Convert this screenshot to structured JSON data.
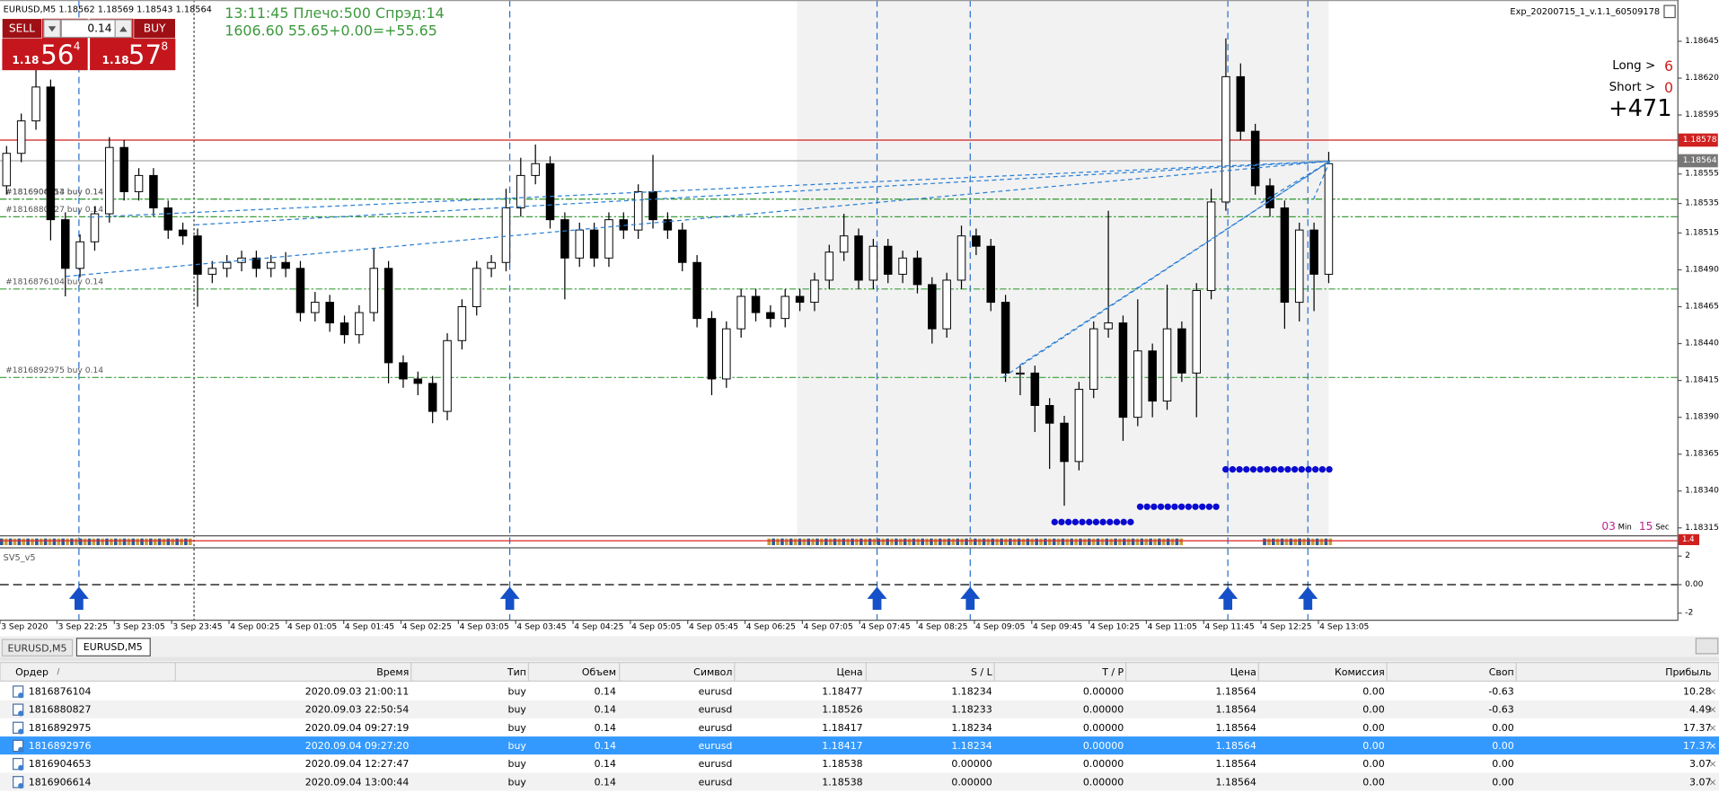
{
  "chart": {
    "symbol_info": "EURUSD,M5  1.18562 1.18569 1.18543 1.18564",
    "sell": "SELL",
    "buy": "BUY",
    "lot": "0.14",
    "bid_prefix": "1.18",
    "bid_big": "56",
    "bid_sup": "4",
    "ask_prefix": "1.18",
    "ask_big": "57",
    "ask_sup": "8",
    "info_line1": "13:11:45 Плечо:500 Спрэд:14",
    "info_line2": "1606.60   55.65+0.00=+55.65",
    "expert": "Exp_20200715_1_v.1.1_60509178",
    "long_label": "Long >",
    "long_value": "6",
    "short_label": "Short >",
    "short_value": "0",
    "profit": "+471",
    "timer_min": "03",
    "timer_min_label": "Min",
    "timer_sec": "15",
    "timer_sec_label": "Sec",
    "ylim": [
      1.1831,
      1.18673
    ],
    "yticks": [
      1.18645,
      {
        "value": 1.1862,
        "label": "1.18620"
      },
      1.18595,
      1.18555,
      1.18535,
      1.18515,
      {
        "value": 1.1849,
        "label": "1.18490"
      },
      1.18465,
      {
        "value": 1.1844,
        "label": "1.18440"
      },
      1.18415,
      {
        "value": 1.1839,
        "label": "1.18390"
      },
      1.18365,
      {
        "value": 1.1834,
        "label": "1.18340"
      },
      1.18315
    ],
    "ask_level": 1.18578,
    "bid_level": 1.18564,
    "orders": [
      {
        "label": "#1816906614 buy 0.14",
        "price": 1.18538
      },
      {
        "label": "#1816904653 buy 0.14",
        "price": 1.18538
      },
      {
        "label": "#1816880827 buy 0.14",
        "price": 1.18526
      },
      {
        "label": "#1816876104 buy 0.14",
        "price": 1.18477
      },
      {
        "label": "#1816892975 buy 0.14",
        "price": 1.18417
      }
    ],
    "time_labels": [
      "3 Sep 2020",
      "3 Sep 22:25",
      "3 Sep 23:05",
      "3 Sep 23:45",
      "4 Sep 00:25",
      "4 Sep 01:05",
      "4 Sep 01:45",
      "4 Sep 02:25",
      "4 Sep 03:05",
      "4 Sep 03:45",
      "4 Sep 04:25",
      "4 Sep 05:05",
      "4 Sep 05:45",
      "4 Sep 06:25",
      "4 Sep 07:05",
      "4 Sep 07:45",
      "4 Sep 08:25",
      "4 Sep 09:05",
      "4 Sep 09:45",
      "4 Sep 10:25",
      "4 Sep 11:05",
      "4 Sep 11:45",
      "4 Sep 12:25",
      "4 Sep 13:05"
    ],
    "candles": {
      "open": [
        1.18547,
        1.18569,
        1.18591,
        1.18614,
        1.18524,
        1.18491,
        1.18509,
        1.18528,
        1.18573,
        1.18543,
        1.18554,
        1.18532,
        1.18517,
        1.18513,
        1.18487,
        1.18491,
        1.18495,
        1.18498,
        1.18491,
        1.18495,
        1.18491,
        1.18461,
        1.18468,
        1.18454,
        1.18446,
        1.18461,
        1.18491,
        1.18427,
        1.18416,
        1.18413,
        1.18394,
        1.18442,
        1.18465,
        1.18491,
        1.18495,
        1.18532,
        1.18554,
        1.18562,
        1.18524,
        1.18498,
        1.18517,
        1.18498,
        1.18524,
        1.18517,
        1.18543,
        1.18524,
        1.18517,
        1.18495,
        1.18457,
        1.18416,
        1.1845,
        1.18472,
        1.18461,
        1.18457,
        1.18472,
        1.18468,
        1.18483,
        1.18502,
        1.18513,
        1.18483,
        1.18506,
        1.18487,
        1.18498,
        1.1848,
        1.1845,
        1.18483,
        1.18513,
        1.18506,
        1.18468,
        1.1842,
        1.1842,
        1.18398,
        1.18386,
        1.1836,
        1.18409,
        1.1845,
        1.18454,
        1.1839,
        1.18435,
        1.18401,
        1.1845,
        1.1842,
        1.18476,
        1.18536,
        1.18621,
        1.18584,
        1.18547,
        1.18532,
        1.18468,
        1.18517,
        1.18487
      ],
      "high": [
        1.18574,
        1.18596,
        1.18628,
        1.18619,
        1.18529,
        1.18514,
        1.18533,
        1.1858,
        1.18578,
        1.18559,
        1.18559,
        1.18537,
        1.18522,
        1.18518,
        1.18496,
        1.185,
        1.18503,
        1.18503,
        1.185,
        1.18502,
        1.18496,
        1.18475,
        1.18473,
        1.18459,
        1.18466,
        1.18505,
        1.18496,
        1.18432,
        1.18421,
        1.18418,
        1.18447,
        1.1847,
        1.18496,
        1.185,
        1.18545,
        1.18566,
        1.18575,
        1.18567,
        1.18529,
        1.18522,
        1.18522,
        1.18529,
        1.18529,
        1.18548,
        1.18568,
        1.18529,
        1.18522,
        1.185,
        1.18462,
        1.18455,
        1.18477,
        1.18477,
        1.18466,
        1.18477,
        1.18477,
        1.18488,
        1.18507,
        1.18528,
        1.18518,
        1.18511,
        1.18511,
        1.18503,
        1.18503,
        1.18485,
        1.18488,
        1.1852,
        1.18518,
        1.18511,
        1.18473,
        1.18425,
        1.18425,
        1.18403,
        1.18391,
        1.18414,
        1.18455,
        1.1853,
        1.18459,
        1.1847,
        1.1844,
        1.1848,
        1.18455,
        1.18481,
        1.18545,
        1.18647,
        1.1863,
        1.18589,
        1.18552,
        1.18537,
        1.18522,
        1.18522,
        1.1857
      ],
      "low": [
        1.18541,
        1.18563,
        1.18585,
        1.1851,
        1.18472,
        1.18485,
        1.18503,
        1.18522,
        1.18537,
        1.18537,
        1.18526,
        1.18511,
        1.18507,
        1.18465,
        1.18481,
        1.18485,
        1.18489,
        1.18485,
        1.18485,
        1.18485,
        1.18455,
        1.18455,
        1.18448,
        1.1844,
        1.1844,
        1.18455,
        1.18413,
        1.1841,
        1.18405,
        1.18386,
        1.18388,
        1.18436,
        1.18459,
        1.18485,
        1.18489,
        1.18526,
        1.18548,
        1.18518,
        1.1847,
        1.18492,
        1.18492,
        1.18492,
        1.18511,
        1.18511,
        1.18518,
        1.18511,
        1.18489,
        1.18451,
        1.18405,
        1.1841,
        1.18444,
        1.18455,
        1.18451,
        1.18451,
        1.18462,
        1.18462,
        1.18477,
        1.18496,
        1.18477,
        1.18477,
        1.18481,
        1.18481,
        1.18474,
        1.1844,
        1.18444,
        1.18477,
        1.185,
        1.18462,
        1.18414,
        1.18405,
        1.1838,
        1.18355,
        1.1833,
        1.18354,
        1.18403,
        1.18444,
        1.18374,
        1.18384,
        1.1839,
        1.18395,
        1.18414,
        1.1839,
        1.1847,
        1.1853,
        1.18578,
        1.18541,
        1.18526,
        1.1845,
        1.18455,
        1.18462,
        1.18481
      ],
      "close": [
        1.18569,
        1.18591,
        1.18614,
        1.18524,
        1.18491,
        1.18509,
        1.18528,
        1.18573,
        1.18543,
        1.18554,
        1.18532,
        1.18517,
        1.18513,
        1.18487,
        1.18491,
        1.18495,
        1.18498,
        1.18491,
        1.18495,
        1.18491,
        1.18461,
        1.18468,
        1.18454,
        1.18446,
        1.18461,
        1.18491,
        1.18427,
        1.18416,
        1.18413,
        1.18394,
        1.18442,
        1.18465,
        1.18491,
        1.18495,
        1.18532,
        1.18554,
        1.18562,
        1.18524,
        1.18498,
        1.18517,
        1.18498,
        1.18524,
        1.18517,
        1.18543,
        1.18524,
        1.18517,
        1.18495,
        1.18457,
        1.18416,
        1.1845,
        1.18472,
        1.18461,
        1.18457,
        1.18472,
        1.18468,
        1.18483,
        1.18502,
        1.18513,
        1.18483,
        1.18506,
        1.18487,
        1.18498,
        1.1848,
        1.1845,
        1.18483,
        1.18513,
        1.18506,
        1.18468,
        1.1842,
        1.1842,
        1.18398,
        1.18386,
        1.1836,
        1.18409,
        1.1845,
        1.18454,
        1.1839,
        1.18435,
        1.18401,
        1.1845,
        1.1842,
        1.18476,
        1.18536,
        1.18621,
        1.18584,
        1.18547,
        1.18532,
        1.18468,
        1.18517,
        1.18487,
        1.18562
      ]
    },
    "indicator": {
      "name": "SV5_v5",
      "badge": "1.4",
      "ylim": [
        -2.46,
        2.54
      ],
      "yticks": [
        2,
        {
          "value": 0,
          "label": "0.00"
        },
        -2
      ]
    }
  },
  "tabs": [
    "EURUSD,M5",
    "EURUSD,M5"
  ],
  "table": {
    "sort_mark": "/",
    "headers": [
      "Ордер",
      "Время",
      "Тип",
      "Объем",
      "Символ",
      "Цена",
      "S / L",
      "T / P",
      "Цена",
      "Комиссия",
      "Своп",
      "Прибыль"
    ],
    "selected_row": 3,
    "rows": [
      [
        "1816876104",
        "2020.09.03 21:00:11",
        "buy",
        "0.14",
        "eurusd",
        "1.18477",
        "1.18234",
        "0.00000",
        "1.18564",
        "0.00",
        "-0.63",
        "10.28"
      ],
      [
        "1816880827",
        "2020.09.03 22:50:54",
        "buy",
        "0.14",
        "eurusd",
        "1.18526",
        "1.18233",
        "0.00000",
        "1.18564",
        "0.00",
        "-0.63",
        "4.49"
      ],
      [
        "1816892975",
        "2020.09.04 09:27:19",
        "buy",
        "0.14",
        "eurusd",
        "1.18417",
        "1.18234",
        "0.00000",
        "1.18564",
        "0.00",
        "0.00",
        "17.37"
      ],
      [
        "1816892976",
        "2020.09.04 09:27:20",
        "buy",
        "0.14",
        "eurusd",
        "1.18417",
        "1.18234",
        "0.00000",
        "1.18564",
        "0.00",
        "0.00",
        "17.37"
      ],
      [
        "1816904653",
        "2020.09.04 12:27:47",
        "buy",
        "0.14",
        "eurusd",
        "1.18538",
        "0.00000",
        "0.00000",
        "1.18564",
        "0.00",
        "0.00",
        "3.07"
      ],
      [
        "1816906614",
        "2020.09.04 13:00:44",
        "buy",
        "0.14",
        "eurusd",
        "1.18538",
        "0.00000",
        "0.00000",
        "1.18564",
        "0.00",
        "0.00",
        "3.07"
      ]
    ]
  }
}
